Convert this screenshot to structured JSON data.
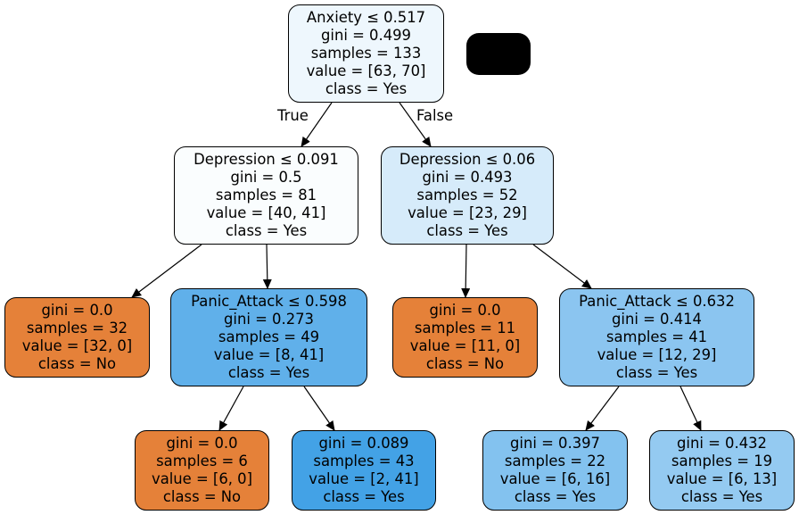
{
  "tree": {
    "nodes": [
      {
        "id": "n0",
        "lines": [
          "Anxiety ≤ 0.517",
          "gini = 0.499",
          "samples = 133",
          "value = [63, 70]",
          "class = Yes"
        ],
        "fill": "#eef7fd"
      },
      {
        "id": "n1",
        "lines": [
          "Depression ≤ 0.091",
          "gini = 0.5",
          "samples = 81",
          "value = [40, 41]",
          "class = Yes"
        ],
        "fill": "#fafdfe"
      },
      {
        "id": "n2",
        "lines": [
          "Depression ≤ 0.06",
          "gini = 0.493",
          "samples = 52",
          "value = [23, 29]",
          "class = Yes"
        ],
        "fill": "#d6ebfa"
      },
      {
        "id": "n3",
        "lines": [
          "gini = 0.0",
          "samples = 32",
          "value = [32, 0]",
          "class = No"
        ],
        "fill": "#e58139"
      },
      {
        "id": "n4",
        "lines": [
          "Panic_Attack ≤ 0.598",
          "gini = 0.273",
          "samples = 49",
          "value = [8, 41]",
          "class = Yes"
        ],
        "fill": "#60b0ea"
      },
      {
        "id": "n5",
        "lines": [
          "gini = 0.0",
          "samples = 11",
          "value = [11, 0]",
          "class = No"
        ],
        "fill": "#e58139"
      },
      {
        "id": "n6",
        "lines": [
          "Panic_Attack ≤ 0.632",
          "gini = 0.414",
          "samples = 41",
          "value = [12, 29]",
          "class = Yes"
        ],
        "fill": "#8bc5f0"
      },
      {
        "id": "n7",
        "lines": [
          "gini = 0.0",
          "samples = 6",
          "value = [6, 0]",
          "class = No"
        ],
        "fill": "#e58139"
      },
      {
        "id": "n8",
        "lines": [
          "gini = 0.089",
          "samples = 43",
          "value = [2, 41]",
          "class = Yes"
        ],
        "fill": "#43a2e6"
      },
      {
        "id": "n9",
        "lines": [
          "gini = 0.397",
          "samples = 22",
          "value = [6, 16]",
          "class = Yes"
        ],
        "fill": "#83c2ef"
      },
      {
        "id": "n10",
        "lines": [
          "gini = 0.432",
          "samples = 19",
          "value = [6, 13]",
          "class = Yes"
        ],
        "fill": "#94caf1"
      }
    ],
    "edges": [
      {
        "from": "n0",
        "to": "n1"
      },
      {
        "from": "n0",
        "to": "n2"
      },
      {
        "from": "n1",
        "to": "n3"
      },
      {
        "from": "n1",
        "to": "n4"
      },
      {
        "from": "n2",
        "to": "n5"
      },
      {
        "from": "n2",
        "to": "n6"
      },
      {
        "from": "n4",
        "to": "n7"
      },
      {
        "from": "n4",
        "to": "n8"
      },
      {
        "from": "n6",
        "to": "n9"
      },
      {
        "from": "n6",
        "to": "n10"
      }
    ],
    "edge_labels": {
      "true_label": "True",
      "false_label": "False"
    }
  }
}
